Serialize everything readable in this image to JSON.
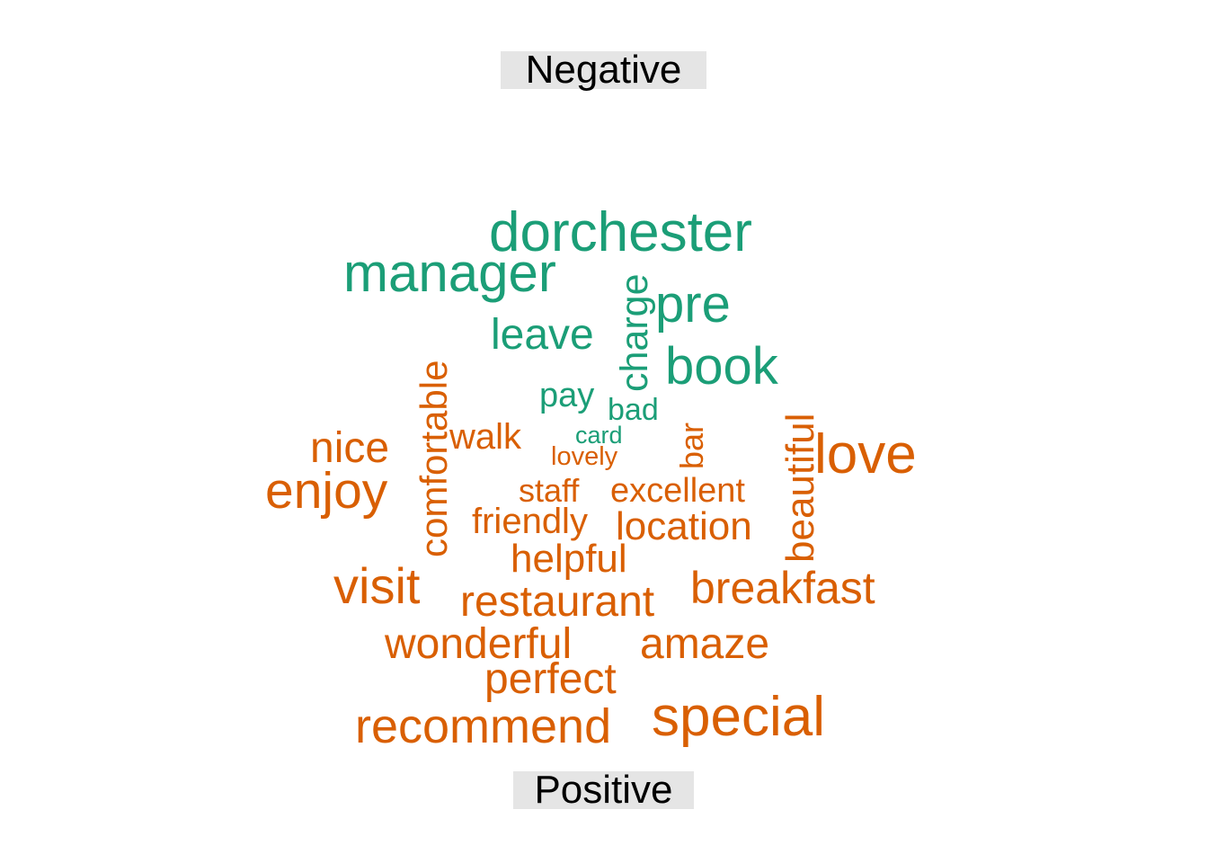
{
  "chart_data": {
    "type": "wordcloud",
    "title": "",
    "groups": [
      {
        "label": "Negative",
        "color": "#1b9e77",
        "words": [
          {
            "text": "dorchester",
            "weight": 10
          },
          {
            "text": "manager",
            "weight": 9
          },
          {
            "text": "pre",
            "weight": 8
          },
          {
            "text": "book",
            "weight": 8
          },
          {
            "text": "leave",
            "weight": 7
          },
          {
            "text": "charge",
            "weight": 6.5
          },
          {
            "text": "pay",
            "weight": 5
          },
          {
            "text": "bad",
            "weight": 4.5
          },
          {
            "text": "card",
            "weight": 3.5
          }
        ]
      },
      {
        "label": "Positive",
        "color": "#d95f02",
        "words": [
          {
            "text": "love",
            "weight": 10
          },
          {
            "text": "special",
            "weight": 9.5
          },
          {
            "text": "enjoy",
            "weight": 9
          },
          {
            "text": "recommend",
            "weight": 8.5
          },
          {
            "text": "visit",
            "weight": 8.5
          },
          {
            "text": "breakfast",
            "weight": 7.5
          },
          {
            "text": "restaurant",
            "weight": 7.5
          },
          {
            "text": "wonderful",
            "weight": 7.5
          },
          {
            "text": "amaze",
            "weight": 7.5
          },
          {
            "text": "perfect",
            "weight": 7.5
          },
          {
            "text": "nice",
            "weight": 7.5
          },
          {
            "text": "comfortable",
            "weight": 7
          },
          {
            "text": "beautiful",
            "weight": 7
          },
          {
            "text": "location",
            "weight": 7
          },
          {
            "text": "helpful",
            "weight": 6.5
          },
          {
            "text": "walk",
            "weight": 6
          },
          {
            "text": "friendly",
            "weight": 6
          },
          {
            "text": "excellent",
            "weight": 6
          },
          {
            "text": "staff",
            "weight": 5.5
          },
          {
            "text": "bar",
            "weight": 5
          },
          {
            "text": "lovely",
            "weight": 4
          }
        ]
      }
    ]
  }
}
